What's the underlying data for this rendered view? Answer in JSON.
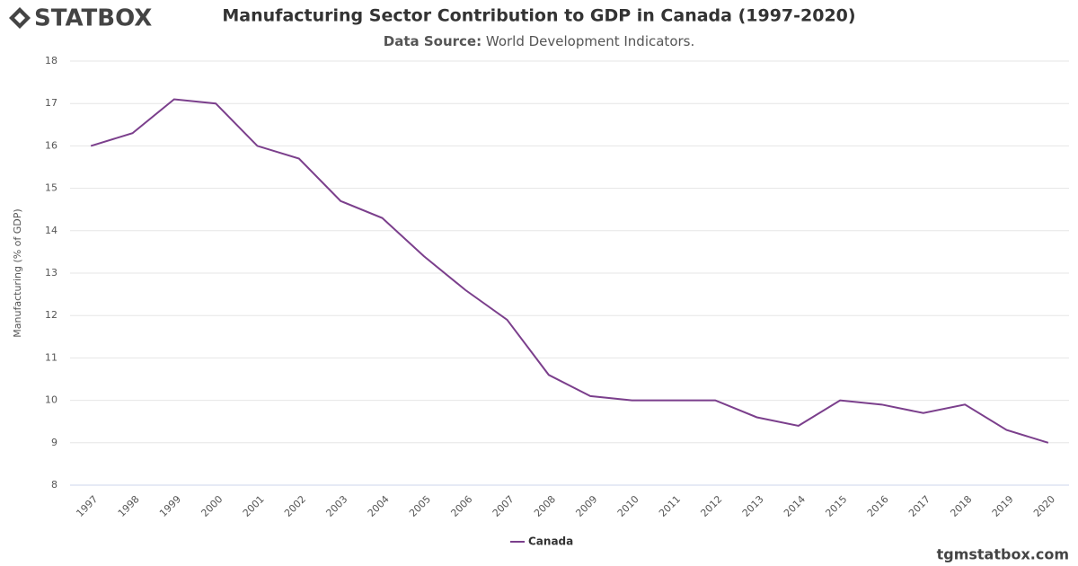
{
  "brand": "STATBOX",
  "footer": "tgmstatbox.com",
  "chart_data": {
    "type": "line",
    "title": "Manufacturing Sector Contribution to GDP in Canada (1997-2020)",
    "subtitle_label": "Data Source:",
    "subtitle": "World Development Indicators.",
    "y_label": "Manufacturing (% of GDP)",
    "categories": [
      "1997",
      "1998",
      "1999",
      "2000",
      "2001",
      "2002",
      "2003",
      "2004",
      "2005",
      "2006",
      "2007",
      "2008",
      "2009",
      "2010",
      "2011",
      "2012",
      "2013",
      "2014",
      "2015",
      "2016",
      "2017",
      "2018",
      "2019",
      "2020"
    ],
    "series": [
      {
        "name": "Canada",
        "color": "#7b3f8c",
        "values": [
          16.0,
          16.3,
          17.1,
          17.0,
          16.0,
          15.7,
          14.7,
          14.3,
          13.4,
          12.6,
          11.9,
          10.6,
          10.1,
          10.0,
          10.0,
          10.0,
          9.6,
          9.4,
          10.0,
          9.9,
          9.7,
          9.9,
          9.3,
          9.0
        ]
      }
    ],
    "ylim": [
      8,
      18
    ],
    "yticks": [
      8,
      9,
      10,
      11,
      12,
      13,
      14,
      15,
      16,
      17,
      18
    ],
    "grid": true,
    "legend": "bottom"
  }
}
